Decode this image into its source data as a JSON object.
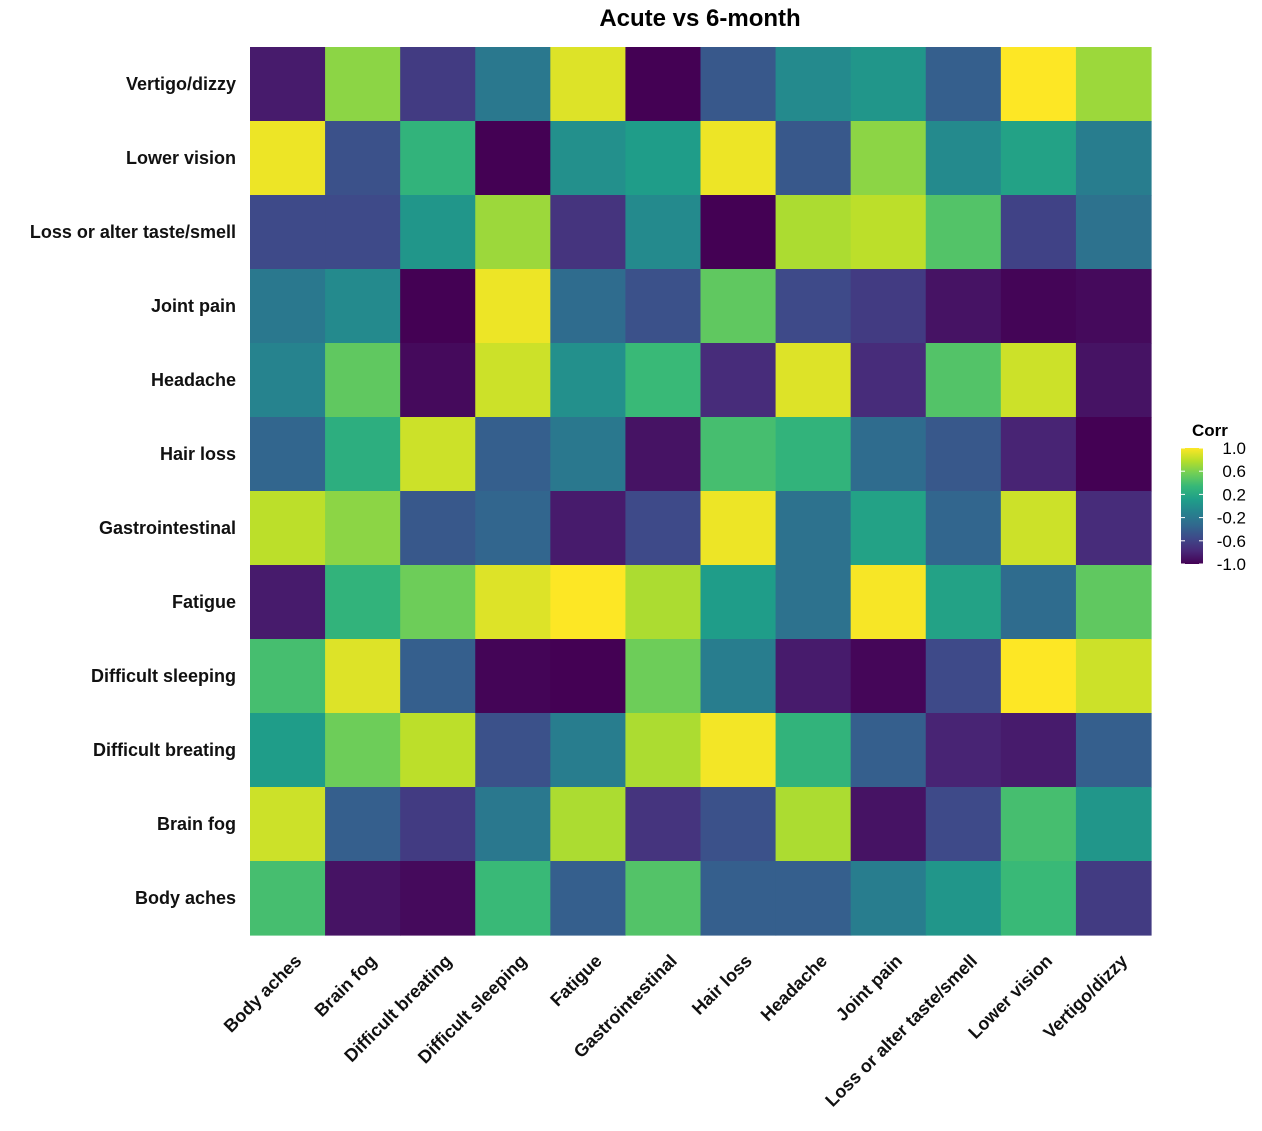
{
  "chart_data": {
    "type": "heatmap",
    "title": "Acute vs 6-month",
    "x_categories": [
      "Body aches",
      "Brain fog",
      "Difficult breating",
      "Difficult sleeping",
      "Fatigue",
      "Gastrointestinal",
      "Hair loss",
      "Headache",
      "Joint pain",
      "Loss or alter taste/smell",
      "Lower vision",
      "Vertigo/dizzy"
    ],
    "y_categories": [
      "Body aches",
      "Brain fog",
      "Difficult breating",
      "Difficult sleeping",
      "Fatigue",
      "Gastrointestinal",
      "Hair loss",
      "Headache",
      "Joint pain",
      "Loss or alter taste/smell",
      "Lower vision",
      "Vertigo/dizzy"
    ],
    "rows": [
      {
        "y": "Vertigo/dizzy",
        "values": [
          -0.85,
          0.65,
          -0.65,
          -0.2,
          0.9,
          -1.0,
          -0.45,
          -0.05,
          0.05,
          -0.4,
          1.0,
          0.7
        ]
      },
      {
        "y": "Lower vision",
        "values": [
          0.95,
          -0.5,
          0.3,
          -1.0,
          0.0,
          0.1,
          0.95,
          -0.45,
          0.65,
          -0.05,
          0.15,
          -0.15
        ]
      },
      {
        "y": "Loss or alter taste/smell",
        "values": [
          -0.55,
          -0.55,
          0.05,
          0.7,
          -0.7,
          -0.05,
          -1.0,
          0.75,
          0.8,
          0.45,
          -0.6,
          -0.25
        ]
      },
      {
        "y": "Joint pain",
        "values": [
          -0.2,
          -0.05,
          -1.0,
          0.95,
          -0.3,
          -0.5,
          0.5,
          -0.55,
          -0.65,
          -0.9,
          -0.98,
          -0.95
        ]
      },
      {
        "y": "Headache",
        "values": [
          -0.1,
          0.5,
          -0.95,
          0.85,
          0.0,
          0.35,
          -0.75,
          0.9,
          -0.75,
          0.45,
          0.85,
          -0.9
        ]
      },
      {
        "y": "Hair loss",
        "values": [
          -0.35,
          0.25,
          0.85,
          -0.4,
          -0.2,
          -0.9,
          0.4,
          0.3,
          -0.3,
          -0.45,
          -0.8,
          -1.0
        ]
      },
      {
        "y": "Gastrointestinal",
        "values": [
          0.8,
          0.65,
          -0.45,
          -0.35,
          -0.85,
          -0.55,
          0.95,
          -0.25,
          0.15,
          -0.35,
          0.85,
          -0.75
        ]
      },
      {
        "y": "Fatigue",
        "values": [
          -0.85,
          0.3,
          0.55,
          0.9,
          1.0,
          0.75,
          0.1,
          -0.25,
          0.98,
          0.15,
          -0.3,
          0.5
        ]
      },
      {
        "y": "Difficult sleeping",
        "values": [
          0.4,
          0.9,
          -0.4,
          -0.98,
          -1.0,
          0.55,
          -0.15,
          -0.85,
          -0.97,
          -0.55,
          1.0,
          0.85
        ]
      },
      {
        "y": "Difficult breating",
        "values": [
          0.1,
          0.55,
          0.8,
          -0.5,
          -0.15,
          0.75,
          0.97,
          0.3,
          -0.4,
          -0.8,
          -0.85,
          -0.4
        ]
      },
      {
        "y": "Brain fog",
        "values": [
          0.85,
          -0.4,
          -0.65,
          -0.2,
          0.75,
          -0.7,
          -0.5,
          0.75,
          -0.9,
          -0.55,
          0.4,
          0.05
        ]
      },
      {
        "y": "Body aches",
        "values": [
          0.4,
          -0.9,
          -0.95,
          0.35,
          -0.4,
          0.45,
          -0.4,
          -0.4,
          -0.15,
          0.05,
          0.35,
          -0.65
        ]
      }
    ],
    "legend": {
      "title": "Corr",
      "ticks": [
        "1.0",
        "0.6",
        "0.2",
        "-0.2",
        "-0.6",
        "-1.0"
      ],
      "range": [
        -1.0,
        1.0
      ],
      "placement": "right"
    },
    "colormap": "viridis",
    "colormap_stops": [
      "#440154",
      "#482878",
      "#3e4989",
      "#31688e",
      "#26828e",
      "#1f9e89",
      "#35b779",
      "#6ece58",
      "#b5de2b",
      "#fde725"
    ]
  }
}
